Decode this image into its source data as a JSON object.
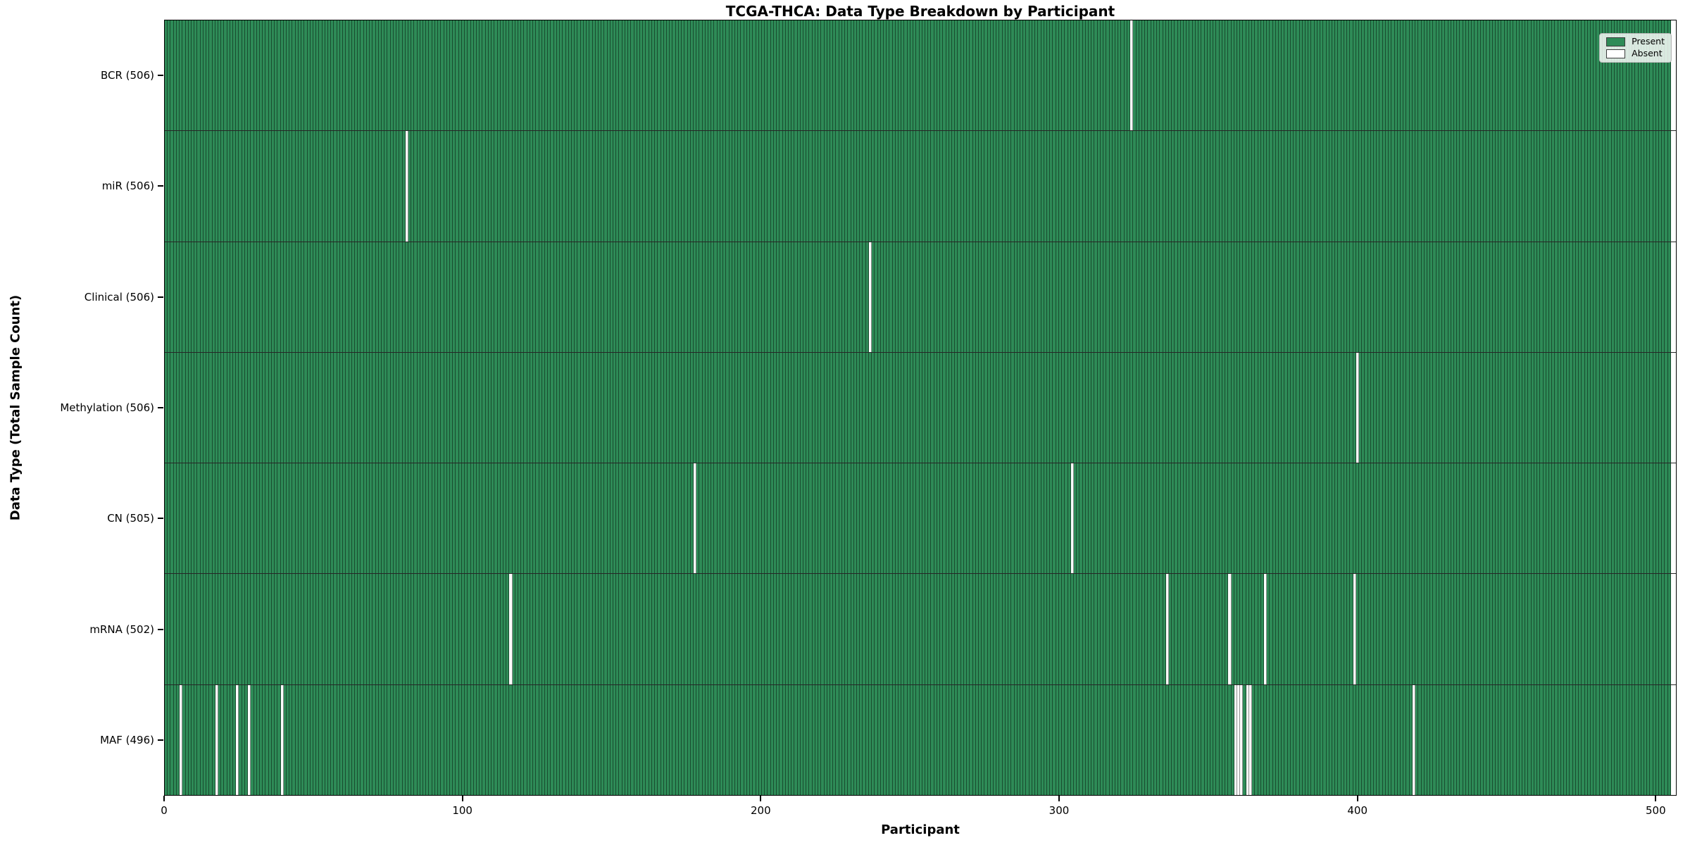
{
  "title": "TCGA-THCA: Data Type Breakdown by Participant",
  "axes": {
    "xlabel": "Participant",
    "ylabel": "Data Type (Total Sample Count)"
  },
  "legend": {
    "position": "upper right",
    "items": [
      {
        "label": "Present",
        "color": "#2e8b57"
      },
      {
        "label": "Absent",
        "color": "#ffffff"
      }
    ]
  },
  "colors": {
    "present": "#2e8b57",
    "absent": "#ffffff",
    "bar_edge": "rgba(0,0,0,0.45)",
    "spine": "#000000",
    "background": "#ffffff"
  },
  "chart_data": {
    "type": "heatmap",
    "title": "TCGA-THCA: Data Type Breakdown by Participant",
    "xlabel": "Participant",
    "ylabel": "Data Type (Total Sample Count)",
    "x_ticks": [
      0,
      100,
      200,
      300,
      400,
      500
    ],
    "x_range": [
      0,
      507
    ],
    "total_participants": 507,
    "legend_entries": [
      "Present",
      "Absent"
    ],
    "legend_position": "upper right",
    "grid": false,
    "rows": [
      {
        "label": "BCR (506)",
        "data_type": "BCR",
        "total_samples": 506,
        "absent_participants": [
          325
        ]
      },
      {
        "label": "miR (506)",
        "data_type": "miR",
        "total_samples": 506,
        "absent_participants": [
          81
        ]
      },
      {
        "label": "Clinical (506)",
        "data_type": "Clinical",
        "total_samples": 506,
        "absent_participants": [
          237
        ]
      },
      {
        "label": "Methylation (506)",
        "data_type": "Methylation",
        "total_samples": 506,
        "absent_participants": [
          401
        ]
      },
      {
        "label": "CN (505)",
        "data_type": "CN",
        "total_samples": 505,
        "absent_participants": [
          178,
          305
        ]
      },
      {
        "label": "mRNA (502)",
        "data_type": "mRNA",
        "total_samples": 502,
        "absent_participants": [
          116,
          337,
          358,
          370,
          400
        ]
      },
      {
        "label": "MAF (496)",
        "data_type": "MAF",
        "total_samples": 496,
        "absent_participants": [
          5,
          17,
          24,
          28,
          39,
          360,
          361,
          362,
          364,
          365,
          420
        ]
      }
    ]
  }
}
